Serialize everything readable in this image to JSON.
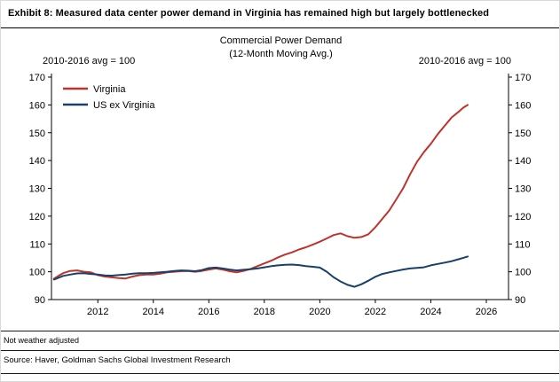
{
  "header": {
    "exhibit_title": "Exhibit 8: Measured data center power demand in Virginia has remained high but largely bottlenecked"
  },
  "chart": {
    "title_line1": "Commercial Power Demand",
    "title_line2": "(12-Month Moving Avg.)",
    "left_axis_note": "2010-2016 avg = 100",
    "right_axis_note": "2010-2016 avg = 100"
  },
  "footnotes": {
    "note": "Not weather adjusted",
    "source": "Source:  Haver, Goldman Sachs Global Investment Research"
  },
  "chart_data": {
    "type": "line",
    "title": "Commercial Power Demand (12-Month Moving Avg.)",
    "subtitle": "2010-2016 avg = 100",
    "xlabel": "",
    "ylabel": "",
    "ylim": [
      90,
      170
    ],
    "yticks": [
      90,
      100,
      110,
      120,
      130,
      140,
      150,
      160,
      170
    ],
    "xlim": [
      2010.33,
      2026.8
    ],
    "xticks": [
      2012,
      2014,
      2016,
      2018,
      2020,
      2022,
      2024,
      2026
    ],
    "grid": false,
    "legend_position": "top-left",
    "axes": {
      "left": true,
      "right": true,
      "bottom": true,
      "top": false
    },
    "series": [
      {
        "name": "Virginia",
        "color": "#bd342c",
        "x": [
          2010.42,
          2010.58,
          2010.75,
          2011.0,
          2011.25,
          2011.5,
          2011.75,
          2012.0,
          2012.25,
          2012.5,
          2012.75,
          2013.0,
          2013.25,
          2013.5,
          2013.75,
          2014.0,
          2014.25,
          2014.5,
          2014.75,
          2015.0,
          2015.25,
          2015.5,
          2015.75,
          2016.0,
          2016.25,
          2016.5,
          2016.75,
          2017.0,
          2017.25,
          2017.5,
          2017.75,
          2018.0,
          2018.25,
          2018.5,
          2018.75,
          2019.0,
          2019.25,
          2019.5,
          2019.75,
          2020.0,
          2020.25,
          2020.5,
          2020.75,
          2021.0,
          2021.25,
          2021.5,
          2021.75,
          2022.0,
          2022.25,
          2022.5,
          2022.75,
          2023.0,
          2023.25,
          2023.5,
          2023.75,
          2024.0,
          2024.25,
          2024.5,
          2024.75,
          2025.0,
          2025.17,
          2025.33
        ],
        "y": [
          97.5,
          98.5,
          99.5,
          100.3,
          100.5,
          100.0,
          99.8,
          98.8,
          98.3,
          98.0,
          97.7,
          97.6,
          98.3,
          98.8,
          99.0,
          99.0,
          99.3,
          99.8,
          100.0,
          100.2,
          100.3,
          100.0,
          100.3,
          100.8,
          101.2,
          100.8,
          100.2,
          99.8,
          100.3,
          101.0,
          102.0,
          103.0,
          104.0,
          105.2,
          106.2,
          107.0,
          108.0,
          108.8,
          109.8,
          110.8,
          112.0,
          113.2,
          113.8,
          112.8,
          112.2,
          112.5,
          113.5,
          116.0,
          119.0,
          122.0,
          126.0,
          130.0,
          135.0,
          139.5,
          143.0,
          146.0,
          149.5,
          152.5,
          155.5,
          157.5,
          159.0,
          160.0
        ]
      },
      {
        "name": "US ex Virginia",
        "color": "#17406a",
        "x": [
          2010.42,
          2010.58,
          2010.75,
          2011.0,
          2011.25,
          2011.5,
          2011.75,
          2012.0,
          2012.25,
          2012.5,
          2012.75,
          2013.0,
          2013.25,
          2013.5,
          2013.75,
          2014.0,
          2014.25,
          2014.5,
          2014.75,
          2015.0,
          2015.25,
          2015.5,
          2015.75,
          2016.0,
          2016.25,
          2016.5,
          2016.75,
          2017.0,
          2017.25,
          2017.5,
          2017.75,
          2018.0,
          2018.25,
          2018.5,
          2018.75,
          2019.0,
          2019.25,
          2019.5,
          2019.75,
          2020.0,
          2020.25,
          2020.5,
          2020.75,
          2021.0,
          2021.25,
          2021.5,
          2021.75,
          2022.0,
          2022.25,
          2022.5,
          2022.75,
          2023.0,
          2023.25,
          2023.5,
          2023.75,
          2024.0,
          2024.25,
          2024.5,
          2024.75,
          2025.0,
          2025.17,
          2025.33
        ],
        "y": [
          97.2,
          97.8,
          98.5,
          99.0,
          99.4,
          99.5,
          99.2,
          99.0,
          98.7,
          98.6,
          98.8,
          99.0,
          99.3,
          99.5,
          99.5,
          99.6,
          99.8,
          100.0,
          100.3,
          100.5,
          100.4,
          100.2,
          100.6,
          101.3,
          101.5,
          101.2,
          100.8,
          100.5,
          100.7,
          100.9,
          101.2,
          101.6,
          102.0,
          102.3,
          102.5,
          102.6,
          102.4,
          102.0,
          101.8,
          101.5,
          100.0,
          98.0,
          96.5,
          95.3,
          94.6,
          95.5,
          96.8,
          98.2,
          99.2,
          99.8,
          100.3,
          100.8,
          101.2,
          101.4,
          101.6,
          102.3,
          102.8,
          103.3,
          103.8,
          104.5,
          105.0,
          105.5
        ]
      }
    ]
  }
}
